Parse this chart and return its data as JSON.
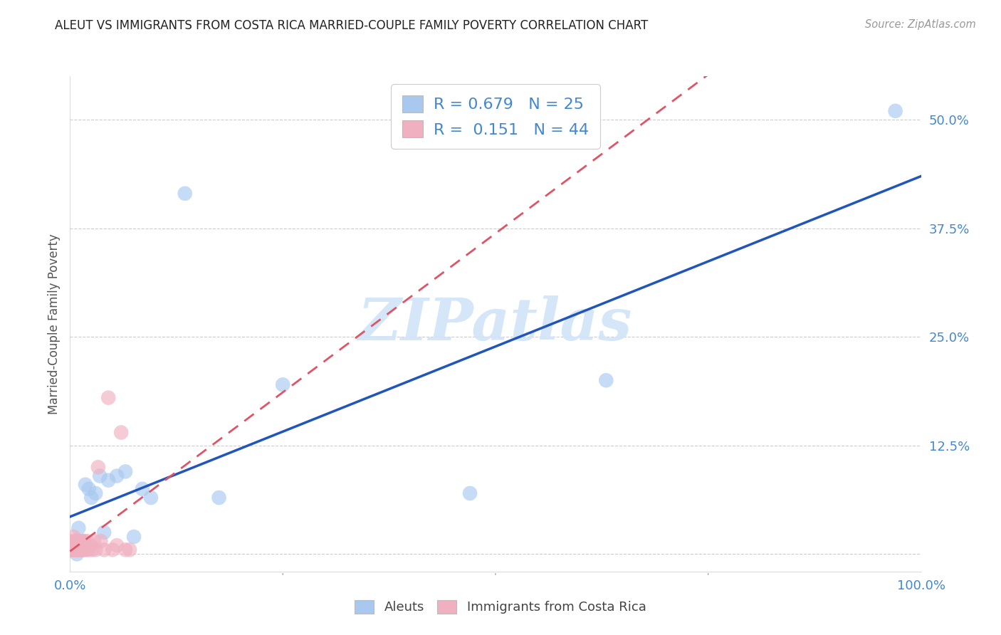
{
  "title": "ALEUT VS IMMIGRANTS FROM COSTA RICA MARRIED-COUPLE FAMILY POVERTY CORRELATION CHART",
  "source": "Source: ZipAtlas.com",
  "ylabel": "Married-Couple Family Poverty",
  "xlim": [
    0.0,
    1.0
  ],
  "ylim": [
    -0.02,
    0.55
  ],
  "xtick_positions": [
    0.0,
    0.25,
    0.5,
    0.75,
    1.0
  ],
  "xtick_labels": [
    "0.0%",
    "",
    "",
    "",
    "100.0%"
  ],
  "ytick_positions": [
    0.0,
    0.125,
    0.25,
    0.375,
    0.5
  ],
  "ytick_labels": [
    "",
    "12.5%",
    "25.0%",
    "37.5%",
    "50.0%"
  ],
  "background_color": "#ffffff",
  "watermark_text": "ZIPatlas",
  "watermark_color": "#d0e4f7",
  "aleut_color": "#a8c8f0",
  "costarica_color": "#f0b0c0",
  "aleut_line_color": "#2255bb",
  "costarica_line_color": "#dd5566",
  "tick_color": "#4488cc",
  "label_color": "#555555",
  "grid_color": "#cccccc",
  "aleut_legend": "Aleuts",
  "costarica_legend": "Immigrants from Costa Rica",
  "aleuts_x": [
    0.004,
    0.006,
    0.008,
    0.01,
    0.012,
    0.014,
    0.016,
    0.018,
    0.022,
    0.025,
    0.03,
    0.035,
    0.04,
    0.045,
    0.055,
    0.065,
    0.075,
    0.085,
    0.095,
    0.135,
    0.175,
    0.25,
    0.47,
    0.63,
    0.97
  ],
  "aleuts_y": [
    0.01,
    0.005,
    0.0,
    0.03,
    0.005,
    0.01,
    0.015,
    0.08,
    0.075,
    0.065,
    0.07,
    0.09,
    0.025,
    0.085,
    0.09,
    0.095,
    0.02,
    0.075,
    0.065,
    0.415,
    0.065,
    0.195,
    0.07,
    0.2,
    0.51
  ],
  "costarica_x": [
    0.001,
    0.002,
    0.002,
    0.003,
    0.003,
    0.004,
    0.004,
    0.005,
    0.005,
    0.006,
    0.006,
    0.007,
    0.007,
    0.008,
    0.008,
    0.009,
    0.009,
    0.01,
    0.01,
    0.011,
    0.012,
    0.012,
    0.013,
    0.014,
    0.015,
    0.016,
    0.017,
    0.018,
    0.019,
    0.02,
    0.022,
    0.024,
    0.026,
    0.028,
    0.03,
    0.033,
    0.036,
    0.04,
    0.045,
    0.05,
    0.055,
    0.06,
    0.065,
    0.07
  ],
  "costarica_y": [
    0.005,
    0.01,
    0.005,
    0.015,
    0.005,
    0.02,
    0.005,
    0.01,
    0.005,
    0.015,
    0.005,
    0.01,
    0.005,
    0.015,
    0.005,
    0.01,
    0.005,
    0.015,
    0.005,
    0.01,
    0.005,
    0.015,
    0.005,
    0.01,
    0.005,
    0.015,
    0.005,
    0.01,
    0.005,
    0.015,
    0.005,
    0.01,
    0.005,
    0.015,
    0.005,
    0.1,
    0.015,
    0.005,
    0.18,
    0.005,
    0.01,
    0.14,
    0.005,
    0.005
  ],
  "aleut_line_x0": 0.0,
  "aleut_line_y0": 0.01,
  "aleut_line_x1": 1.0,
  "aleut_line_y1": 0.405,
  "cr_line_x0": 0.0,
  "cr_line_y0": 0.01,
  "cr_line_x1": 0.15,
  "cr_line_y1": 0.1
}
